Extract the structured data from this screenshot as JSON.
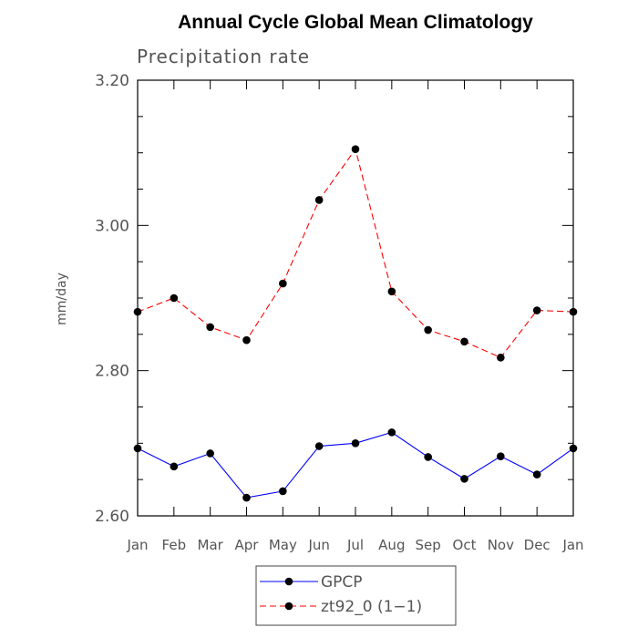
{
  "chart_data": {
    "type": "line",
    "title": "Annual Cycle Global Mean Climatology",
    "subtitle": "Precipitation rate",
    "xlabel": "",
    "ylabel": "mm/day",
    "categories": [
      "Jan",
      "Feb",
      "Mar",
      "Apr",
      "May",
      "Jun",
      "Jul",
      "Aug",
      "Sep",
      "Oct",
      "Nov",
      "Dec",
      "Jan"
    ],
    "ylim": [
      2.6,
      3.2
    ],
    "yticks": [
      "2.60",
      "2.80",
      "3.00",
      "3.20"
    ],
    "grid": false,
    "legend_position": "bottom",
    "series": [
      {
        "name": "GPCP",
        "color": "#0000ff",
        "line_style": "solid",
        "values": [
          2.693,
          2.668,
          2.686,
          2.625,
          2.634,
          2.696,
          2.7,
          2.715,
          2.681,
          2.651,
          2.682,
          2.657,
          2.693
        ]
      },
      {
        "name": "zt92_0 (1−1)",
        "color": "#ff0000",
        "line_style": "dashed",
        "values": [
          2.881,
          2.9,
          2.86,
          2.842,
          2.92,
          3.035,
          3.105,
          2.909,
          2.856,
          2.84,
          2.818,
          2.883,
          2.881
        ]
      }
    ]
  }
}
